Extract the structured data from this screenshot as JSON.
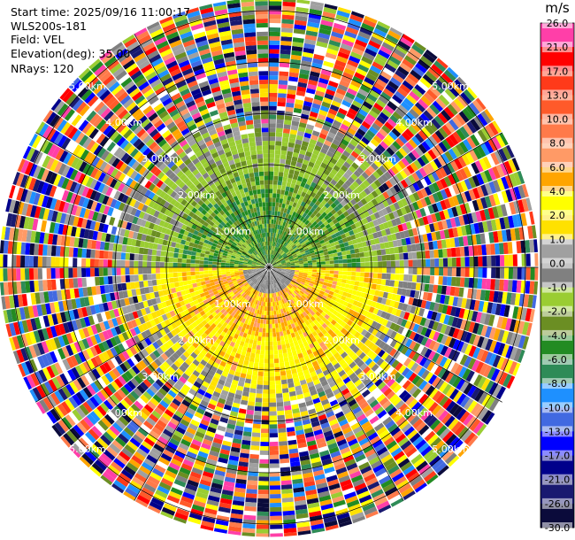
{
  "info": {
    "start_time": "Start time: 2025/09/16 11:00:17",
    "station": "WLS200s-181",
    "field": "Field: VEL",
    "elevation": "Elevation(deg): 35.00",
    "nrays": "NRays: 120"
  },
  "colorbar": {
    "unit": "m/s",
    "ticks": [
      "26.0",
      "21.0",
      "17.0",
      "13.0",
      "10.0",
      "8.0",
      "6.0",
      "4.0",
      "2.0",
      "1.0",
      "0.0",
      "-1.0",
      "-2.0",
      "-4.0",
      "-6.0",
      "-8.0",
      "-10.0",
      "-13.0",
      "-17.0",
      "-21.0",
      "-26.0",
      "-30.0"
    ],
    "colors": [
      "#ff3fa8",
      "#ff0000",
      "#ff3a1a",
      "#ff5a2a",
      "#ff7a4a",
      "#ff9a66",
      "#ffa500",
      "#ffff00",
      "#ffe100",
      "#a0a0a0",
      "#808080",
      "#9acd32",
      "#6b8e23",
      "#228b22",
      "#2e8b57",
      "#1e90ff",
      "#4169e1",
      "#0000ff",
      "#00008b",
      "#191970",
      "#0b0b3b"
    ]
  },
  "chart_data": {
    "type": "heatmap",
    "projection": "polar PPI",
    "field": "VEL",
    "units": "m/s",
    "elevation_deg": 35.0,
    "nrays": 120,
    "range_rings_km": [
      "1.00km",
      "2.00km",
      "3.00km",
      "4.00km",
      "5.00km"
    ],
    "max_range_km": 5.25,
    "color_scale": [
      -30.0,
      26.0
    ],
    "regions": [
      {
        "azimuth_deg": [
          270,
          450
        ],
        "range_km": [
          0,
          1.8
        ],
        "dominant_velocity": "-6.0 to -2.0"
      },
      {
        "azimuth_deg": [
          90,
          270
        ],
        "range_km": [
          0,
          1.3
        ],
        "dominant_velocity": "2.0 to 6.0"
      },
      {
        "azimuth_deg": [
          90,
          270
        ],
        "range_km": [
          1.3,
          2.6
        ],
        "dominant_velocity": "1.0 to 4.0"
      },
      {
        "azimuth_deg": [
          0,
          360
        ],
        "range_km": [
          2.6,
          5.25
        ],
        "dominant_velocity": "noise (mixed -30.0 to 26.0)"
      }
    ]
  }
}
